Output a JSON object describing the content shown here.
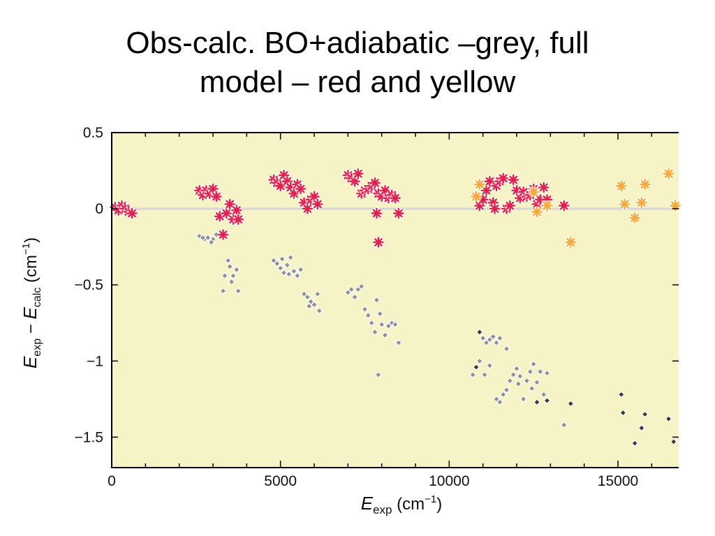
{
  "slide": {
    "title_line1": "Obs-calc. BO+adiabatic –grey, full",
    "title_line2": "model – red and yellow"
  },
  "chart_data": {
    "type": "scatter",
    "title": "",
    "xlabel": {
      "main": "E",
      "sub": "exp",
      "unit": " (cm",
      "sup": "−1",
      "close": ")"
    },
    "ylabel": {
      "main1": "E",
      "sub1": "exp",
      "minus": " − ",
      "main2": "E",
      "sub2": "calc",
      "unit": " (cm",
      "sup": "−1",
      "close": ")"
    },
    "xlim": [
      0,
      16800
    ],
    "ylim": [
      -1.7,
      0.5
    ],
    "xticks": [
      0,
      5000,
      10000,
      15000
    ],
    "xtick_labels": [
      "0",
      "5000",
      "10000",
      "15000"
    ],
    "yticks": [
      0.5,
      0,
      -0.5,
      -1,
      -1.5
    ],
    "ytick_labels": [
      "0.5",
      "0",
      "−0.5",
      "−1",
      "−1.5"
    ],
    "reference_line_y": 0,
    "grid": false,
    "colors": {
      "plot_bg": "#f6f3c6",
      "frame": "#000000",
      "zero_line": "#d6d6d6",
      "grey_marker": "#8f8f97",
      "dark_marker": "#3a3a44",
      "red_marker": "#e0214f",
      "yellow_marker": "#f7a83a"
    },
    "series": [
      {
        "marker": "diamond",
        "color": "#8f8f97",
        "points": [
          [
            2600,
            -0.18
          ],
          [
            2750,
            -0.2
          ],
          [
            2850,
            -0.19
          ],
          [
            3000,
            -0.2
          ],
          [
            3100,
            -0.17
          ],
          [
            2700,
            -0.19
          ],
          [
            2950,
            -0.22
          ],
          [
            3300,
            -0.54
          ],
          [
            3350,
            -0.44
          ],
          [
            3450,
            -0.34
          ],
          [
            3500,
            -0.38
          ],
          [
            3600,
            -0.44
          ],
          [
            3700,
            -0.4
          ],
          [
            3750,
            -0.54
          ],
          [
            3550,
            -0.48
          ],
          [
            4800,
            -0.34
          ],
          [
            4900,
            -0.36
          ],
          [
            5000,
            -0.39
          ],
          [
            5100,
            -0.42
          ],
          [
            5200,
            -0.37
          ],
          [
            5300,
            -0.32
          ],
          [
            5400,
            -0.41
          ],
          [
            5500,
            -0.44
          ],
          [
            5600,
            -0.4
          ],
          [
            5250,
            -0.43
          ],
          [
            5050,
            -0.33
          ],
          [
            5700,
            -0.56
          ],
          [
            5800,
            -0.58
          ],
          [
            5900,
            -0.61
          ],
          [
            6000,
            -0.63
          ],
          [
            6100,
            -0.56
          ],
          [
            6150,
            -0.67
          ],
          [
            5850,
            -0.64
          ],
          [
            7000,
            -0.55
          ],
          [
            7100,
            -0.53
          ],
          [
            7200,
            -0.58
          ],
          [
            7300,
            -0.53
          ],
          [
            7400,
            -0.51
          ],
          [
            7500,
            -0.66
          ],
          [
            7600,
            -0.7
          ],
          [
            7700,
            -0.75
          ],
          [
            7800,
            -0.81
          ],
          [
            7850,
            -0.6
          ],
          [
            7950,
            -0.69
          ],
          [
            8000,
            -0.76
          ],
          [
            8100,
            -0.83
          ],
          [
            8200,
            -0.77
          ],
          [
            8300,
            -0.75
          ],
          [
            8400,
            -0.76
          ],
          [
            8500,
            -0.88
          ],
          [
            7900,
            -1.09
          ],
          [
            10700,
            -1.09
          ],
          [
            10800,
            -1.04
          ],
          [
            10900,
            -1.0
          ],
          [
            11000,
            -0.85
          ],
          [
            11100,
            -0.88
          ],
          [
            11200,
            -0.86
          ],
          [
            11300,
            -0.84
          ],
          [
            11400,
            -0.88
          ],
          [
            11500,
            -0.85
          ],
          [
            11700,
            -0.92
          ],
          [
            11050,
            -1.09
          ],
          [
            11200,
            -1.03
          ],
          [
            11400,
            -1.25
          ],
          [
            11500,
            -1.27
          ],
          [
            11600,
            -1.22
          ],
          [
            11700,
            -1.19
          ],
          [
            11800,
            -1.13
          ],
          [
            11900,
            -1.09
          ],
          [
            12000,
            -1.05
          ],
          [
            12100,
            -1.1
          ],
          [
            12200,
            -1.25
          ],
          [
            12300,
            -1.13
          ],
          [
            12400,
            -1.07
          ],
          [
            12500,
            -1.02
          ],
          [
            12600,
            -1.14
          ],
          [
            12700,
            -1.07
          ],
          [
            12800,
            -1.22
          ],
          [
            12900,
            -1.08
          ],
          [
            12050,
            -1.15
          ],
          [
            12450,
            -1.18
          ],
          [
            13400,
            -1.42
          ]
        ]
      },
      {
        "marker": "diamond",
        "color": "#3a3a44",
        "points": [
          [
            10800,
            -1.04
          ],
          [
            10900,
            -0.81
          ],
          [
            12600,
            -1.27
          ],
          [
            12900,
            -1.26
          ],
          [
            13600,
            -1.28
          ],
          [
            15100,
            -1.22
          ],
          [
            15150,
            -1.34
          ],
          [
            15500,
            -1.54
          ],
          [
            15700,
            -1.44
          ],
          [
            15800,
            -1.35
          ],
          [
            16500,
            -1.38
          ],
          [
            16650,
            -1.53
          ]
        ]
      },
      {
        "marker": "asterisk",
        "color": "#e0214f",
        "points": [
          [
            100,
            0.01
          ],
          [
            200,
            -0.01
          ],
          [
            300,
            0.02
          ],
          [
            400,
            0.0
          ],
          [
            500,
            -0.02
          ],
          [
            600,
            -0.03
          ],
          [
            2600,
            0.12
          ],
          [
            2700,
            0.09
          ],
          [
            2800,
            0.12
          ],
          [
            2900,
            0.1
          ],
          [
            3000,
            0.13
          ],
          [
            3100,
            0.08
          ],
          [
            3200,
            -0.05
          ],
          [
            3300,
            -0.17
          ],
          [
            3400,
            -0.03
          ],
          [
            3500,
            0.03
          ],
          [
            3600,
            -0.07
          ],
          [
            3700,
            -0.01
          ],
          [
            3750,
            -0.07
          ],
          [
            4800,
            0.19
          ],
          [
            4900,
            0.17
          ],
          [
            5000,
            0.15
          ],
          [
            5100,
            0.22
          ],
          [
            5200,
            0.18
          ],
          [
            5300,
            0.14
          ],
          [
            5400,
            0.1
          ],
          [
            5500,
            0.16
          ],
          [
            5600,
            0.13
          ],
          [
            5700,
            0.04
          ],
          [
            5800,
            0.0
          ],
          [
            5900,
            0.06
          ],
          [
            6000,
            0.08
          ],
          [
            6100,
            0.03
          ],
          [
            7000,
            0.22
          ],
          [
            7100,
            0.2
          ],
          [
            7200,
            0.18
          ],
          [
            7300,
            0.23
          ],
          [
            7400,
            0.1
          ],
          [
            7500,
            0.12
          ],
          [
            7600,
            0.13
          ],
          [
            7700,
            0.15
          ],
          [
            7800,
            0.17
          ],
          [
            7900,
            0.1
          ],
          [
            8000,
            0.08
          ],
          [
            8100,
            0.12
          ],
          [
            8200,
            0.07
          ],
          [
            8300,
            0.09
          ],
          [
            8400,
            0.07
          ],
          [
            7850,
            -0.03
          ],
          [
            8500,
            -0.03
          ],
          [
            7900,
            -0.22
          ],
          [
            10900,
            0.02
          ],
          [
            11000,
            0.06
          ],
          [
            11100,
            0.12
          ],
          [
            11200,
            0.18
          ],
          [
            11300,
            0.04
          ],
          [
            11400,
            0.15
          ],
          [
            11500,
            0.18
          ],
          [
            11600,
            0.2
          ],
          [
            11700,
            0.0
          ],
          [
            11800,
            0.02
          ],
          [
            11900,
            0.19
          ],
          [
            12000,
            0.12
          ],
          [
            12100,
            0.07
          ],
          [
            12200,
            0.11
          ],
          [
            12300,
            0.08
          ],
          [
            12400,
            0.09
          ],
          [
            12500,
            0.13
          ],
          [
            12600,
            0.03
          ],
          [
            12700,
            0.06
          ],
          [
            12800,
            0.14
          ],
          [
            12900,
            0.06
          ],
          [
            11350,
            0.0
          ],
          [
            13400,
            0.02
          ]
        ]
      },
      {
        "marker": "asterisk",
        "color": "#f7a83a",
        "points": [
          [
            10800,
            0.08
          ],
          [
            10900,
            0.16
          ],
          [
            12500,
            0.11
          ],
          [
            12600,
            -0.02
          ],
          [
            12900,
            0.02
          ],
          [
            13600,
            -0.22
          ],
          [
            15100,
            0.15
          ],
          [
            15200,
            0.03
          ],
          [
            15500,
            -0.06
          ],
          [
            15700,
            0.04
          ],
          [
            15800,
            0.16
          ],
          [
            16500,
            0.23
          ],
          [
            16700,
            0.02
          ]
        ]
      }
    ]
  }
}
